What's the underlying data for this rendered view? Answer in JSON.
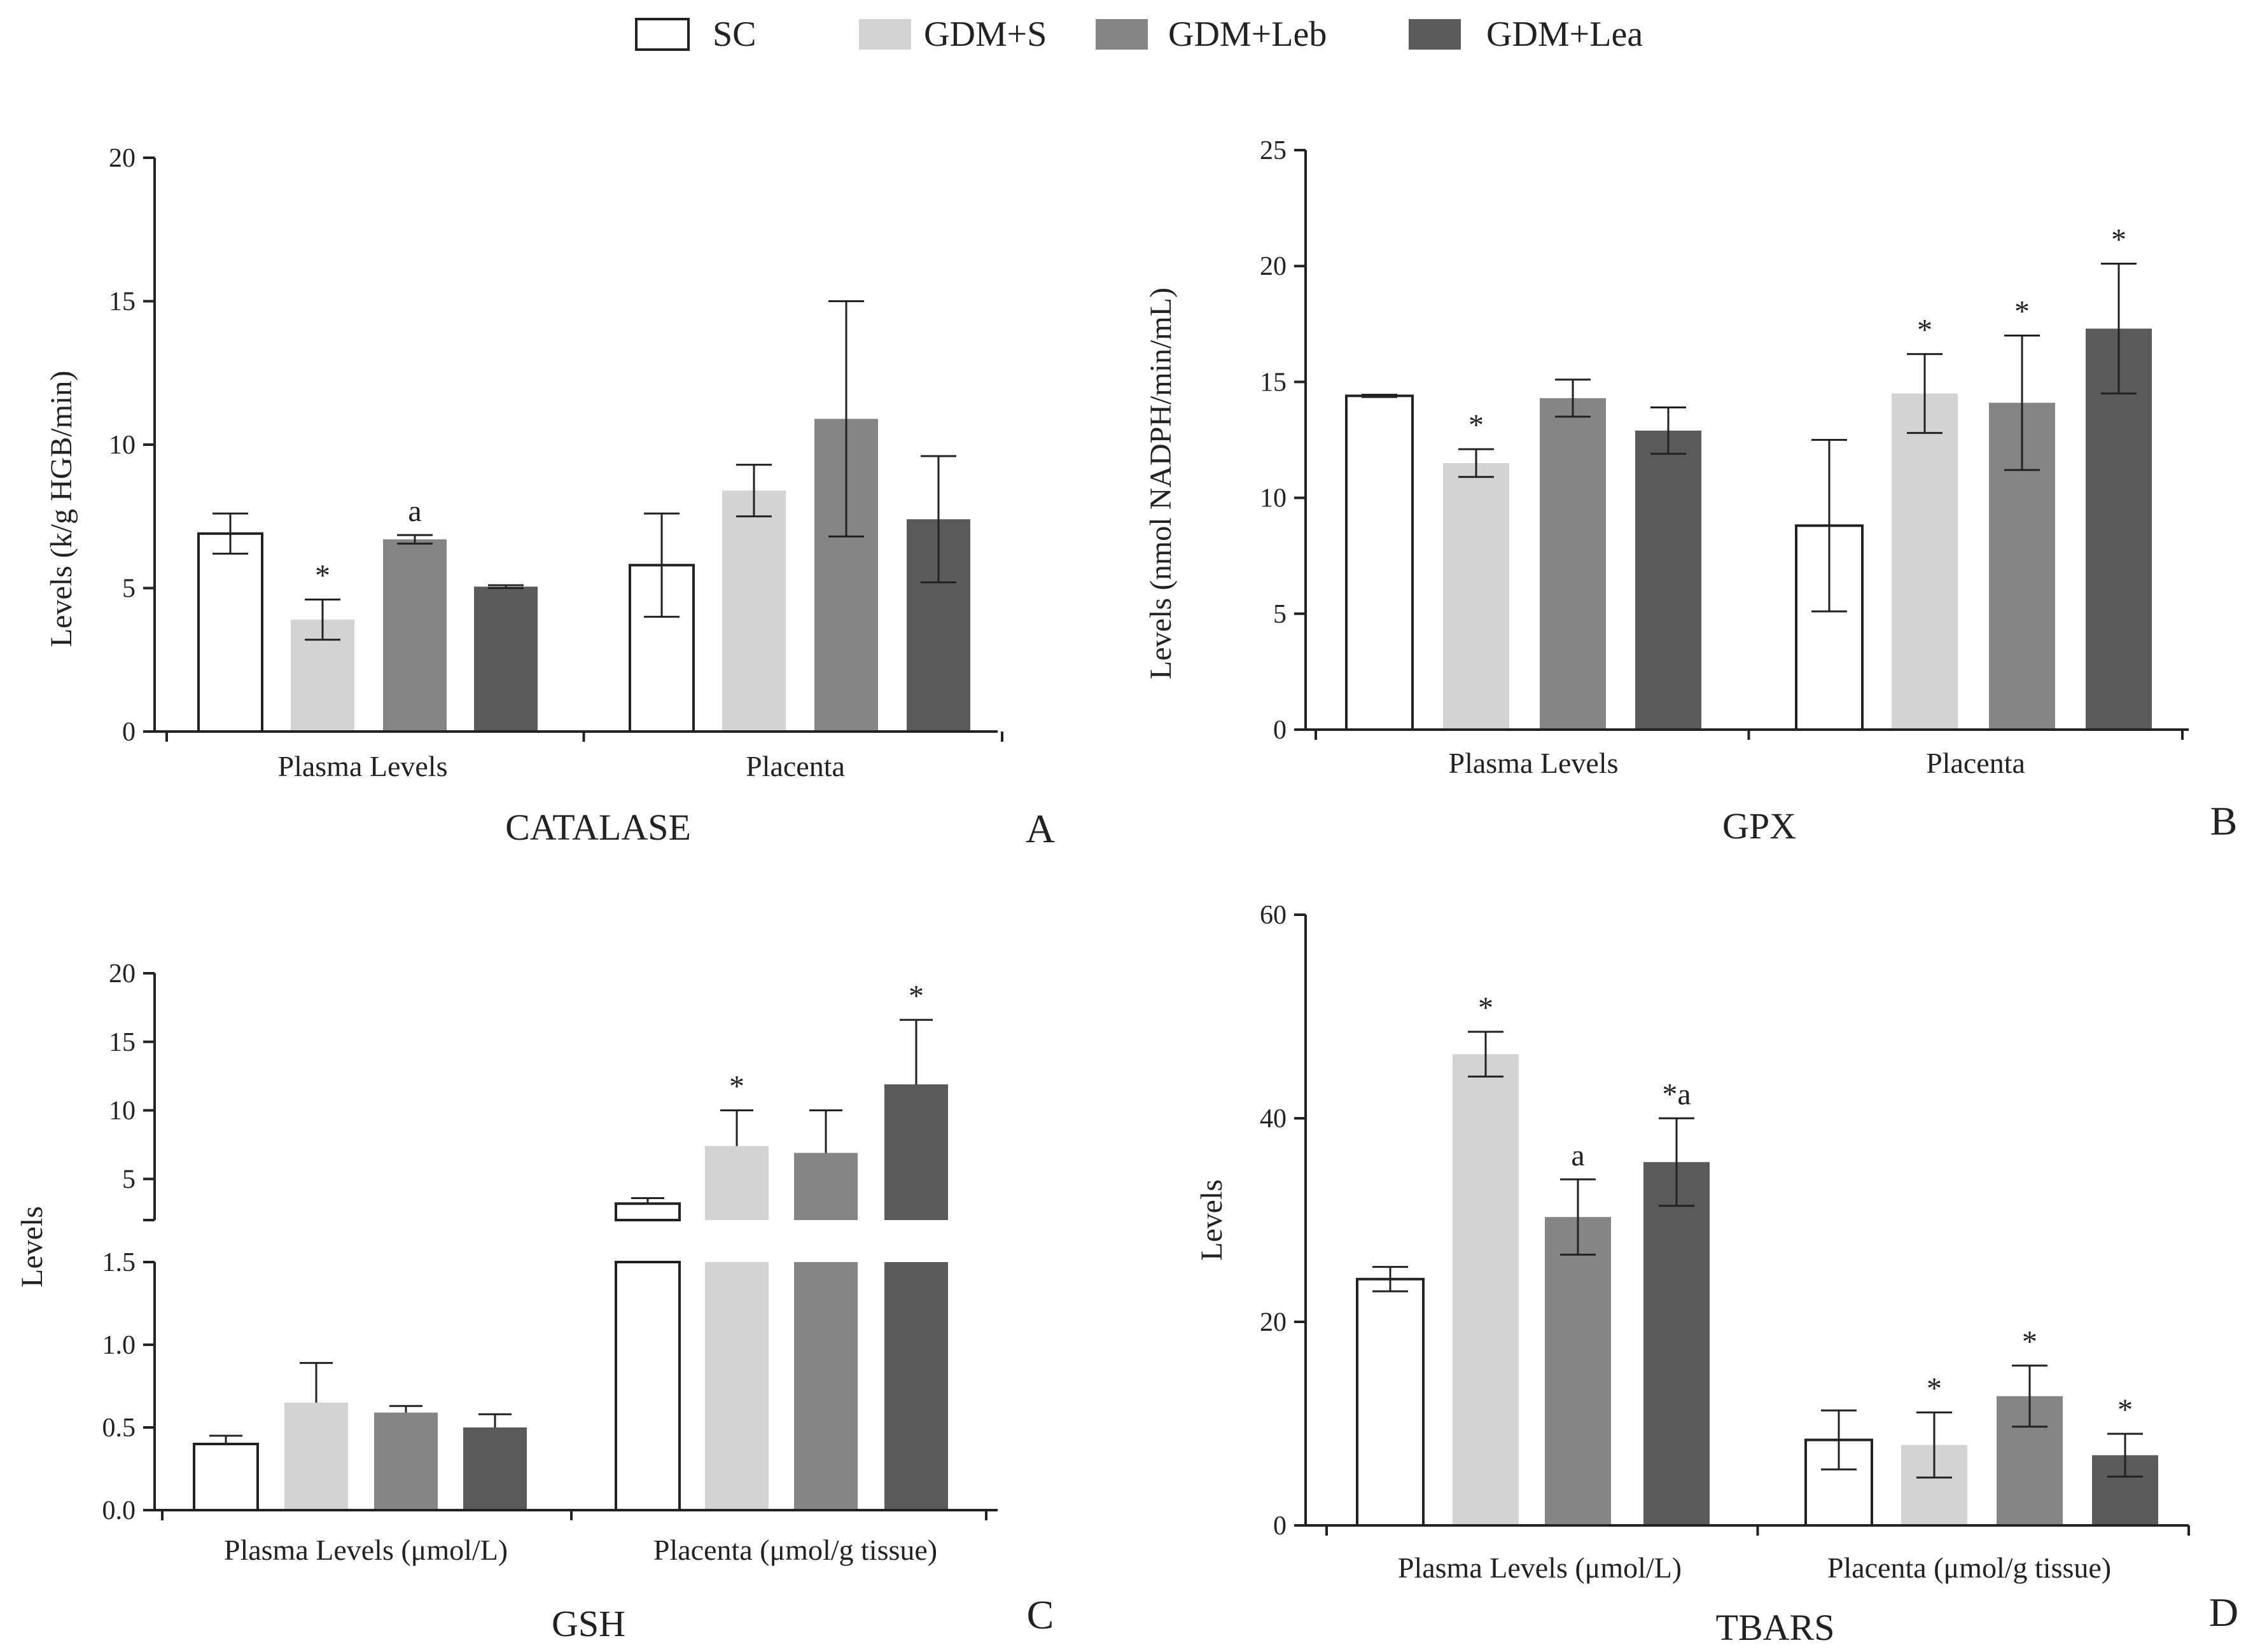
{
  "legend": [
    {
      "name": "SC",
      "color": "#ffffff"
    },
    {
      "name": "GDM+S",
      "color": "#d3d3d3"
    },
    {
      "name": "GDM+Leb",
      "color": "#858585"
    },
    {
      "name": "GDM+Lea",
      "color": "#5a5a5a"
    }
  ],
  "chart_data": [
    {
      "type": "bar",
      "title": "CATALASE",
      "panel_letter": "A",
      "ylabel": "Levels (k/g HGB/min)",
      "xlabel": "",
      "ylim": [
        0,
        20
      ],
      "yticks": [
        0,
        5,
        10,
        15,
        20
      ],
      "categories": [
        "Plasma Levels",
        "Placenta"
      ],
      "series": [
        {
          "name": "SC",
          "values": [
            6.9,
            5.8
          ],
          "errors": [
            0.7,
            1.8
          ],
          "annotations": [
            "",
            ""
          ]
        },
        {
          "name": "GDM+S",
          "values": [
            3.9,
            8.4
          ],
          "errors": [
            0.7,
            0.9
          ],
          "annotations": [
            "*",
            ""
          ]
        },
        {
          "name": "GDM+Leb",
          "values": [
            6.7,
            10.9
          ],
          "errors": [
            0.15,
            4.1
          ],
          "annotations": [
            "a",
            ""
          ]
        },
        {
          "name": "GDM+Lea",
          "values": [
            5.05,
            7.4
          ],
          "errors": [
            0.05,
            2.2
          ],
          "annotations": [
            "",
            ""
          ]
        }
      ]
    },
    {
      "type": "bar",
      "title": "GPX",
      "panel_letter": "B",
      "ylabel": "Levels (nmol NADPH/min/mL)",
      "xlabel": "",
      "ylim": [
        0,
        25
      ],
      "yticks": [
        0,
        5,
        10,
        15,
        20,
        25
      ],
      "categories": [
        "Plasma Levels",
        "Placenta"
      ],
      "series": [
        {
          "name": "SC",
          "values": [
            14.4,
            8.8
          ],
          "errors": [
            0.05,
            3.7
          ],
          "annotations": [
            "",
            ""
          ]
        },
        {
          "name": "GDM+S",
          "values": [
            11.5,
            14.5
          ],
          "errors": [
            0.6,
            1.7
          ],
          "annotations": [
            "*",
            "*"
          ]
        },
        {
          "name": "GDM+Leb",
          "values": [
            14.3,
            14.1
          ],
          "errors": [
            0.8,
            2.9
          ],
          "annotations": [
            "",
            "*"
          ]
        },
        {
          "name": "GDM+Lea",
          "values": [
            12.9,
            17.3
          ],
          "errors": [
            1.0,
            2.8
          ],
          "annotations": [
            "",
            "*"
          ]
        }
      ]
    },
    {
      "type": "bar",
      "title": "GSH",
      "panel_letter": "C",
      "ylabel": "Levels",
      "xlabel": "",
      "axis_break": true,
      "lower_ylim": [
        0,
        1.5
      ],
      "lower_yticks": [
        "0.0",
        "0.5",
        "1.0",
        "1.5"
      ],
      "upper_ylim": [
        2,
        20
      ],
      "upper_yticks": [
        "5",
        "10",
        "15",
        "20"
      ],
      "categories": [
        "Plasma Levels (μmol/L)",
        "Placenta (μmol/g tissue)"
      ],
      "series": [
        {
          "name": "SC",
          "values": [
            0.4,
            3.2
          ],
          "errors": [
            0.05,
            0.4
          ],
          "annotations": [
            "",
            ""
          ]
        },
        {
          "name": "GDM+S",
          "values": [
            0.65,
            7.4
          ],
          "errors": [
            0.24,
            2.6
          ],
          "annotations": [
            "",
            "*"
          ]
        },
        {
          "name": "GDM+Leb",
          "values": [
            0.59,
            6.9
          ],
          "errors": [
            0.04,
            3.1
          ],
          "annotations": [
            "",
            ""
          ]
        },
        {
          "name": "GDM+Lea",
          "values": [
            0.5,
            11.9
          ],
          "errors": [
            0.08,
            4.7
          ],
          "annotations": [
            "",
            "*"
          ]
        }
      ]
    },
    {
      "type": "bar",
      "title": "TBARS",
      "panel_letter": "D",
      "ylabel": "Levels",
      "xlabel": "",
      "ylim": [
        0,
        60
      ],
      "yticks": [
        0,
        20,
        40,
        60
      ],
      "categories": [
        "Plasma Levels (μmol/L)",
        "Placenta (μmol/g tissue)"
      ],
      "series": [
        {
          "name": "SC",
          "values": [
            24.2,
            8.4
          ],
          "errors": [
            1.2,
            2.9
          ],
          "annotations": [
            "",
            ""
          ]
        },
        {
          "name": "GDM+S",
          "values": [
            46.3,
            7.9
          ],
          "errors": [
            2.2,
            3.2
          ],
          "annotations": [
            "*",
            "*"
          ]
        },
        {
          "name": "GDM+Leb",
          "values": [
            30.3,
            12.7
          ],
          "errors": [
            3.7,
            3.0
          ],
          "annotations": [
            "a",
            "*"
          ]
        },
        {
          "name": "GDM+Lea",
          "values": [
            35.7,
            6.9
          ],
          "errors": [
            4.3,
            2.1
          ],
          "annotations": [
            "*a",
            "*"
          ]
        }
      ]
    }
  ]
}
